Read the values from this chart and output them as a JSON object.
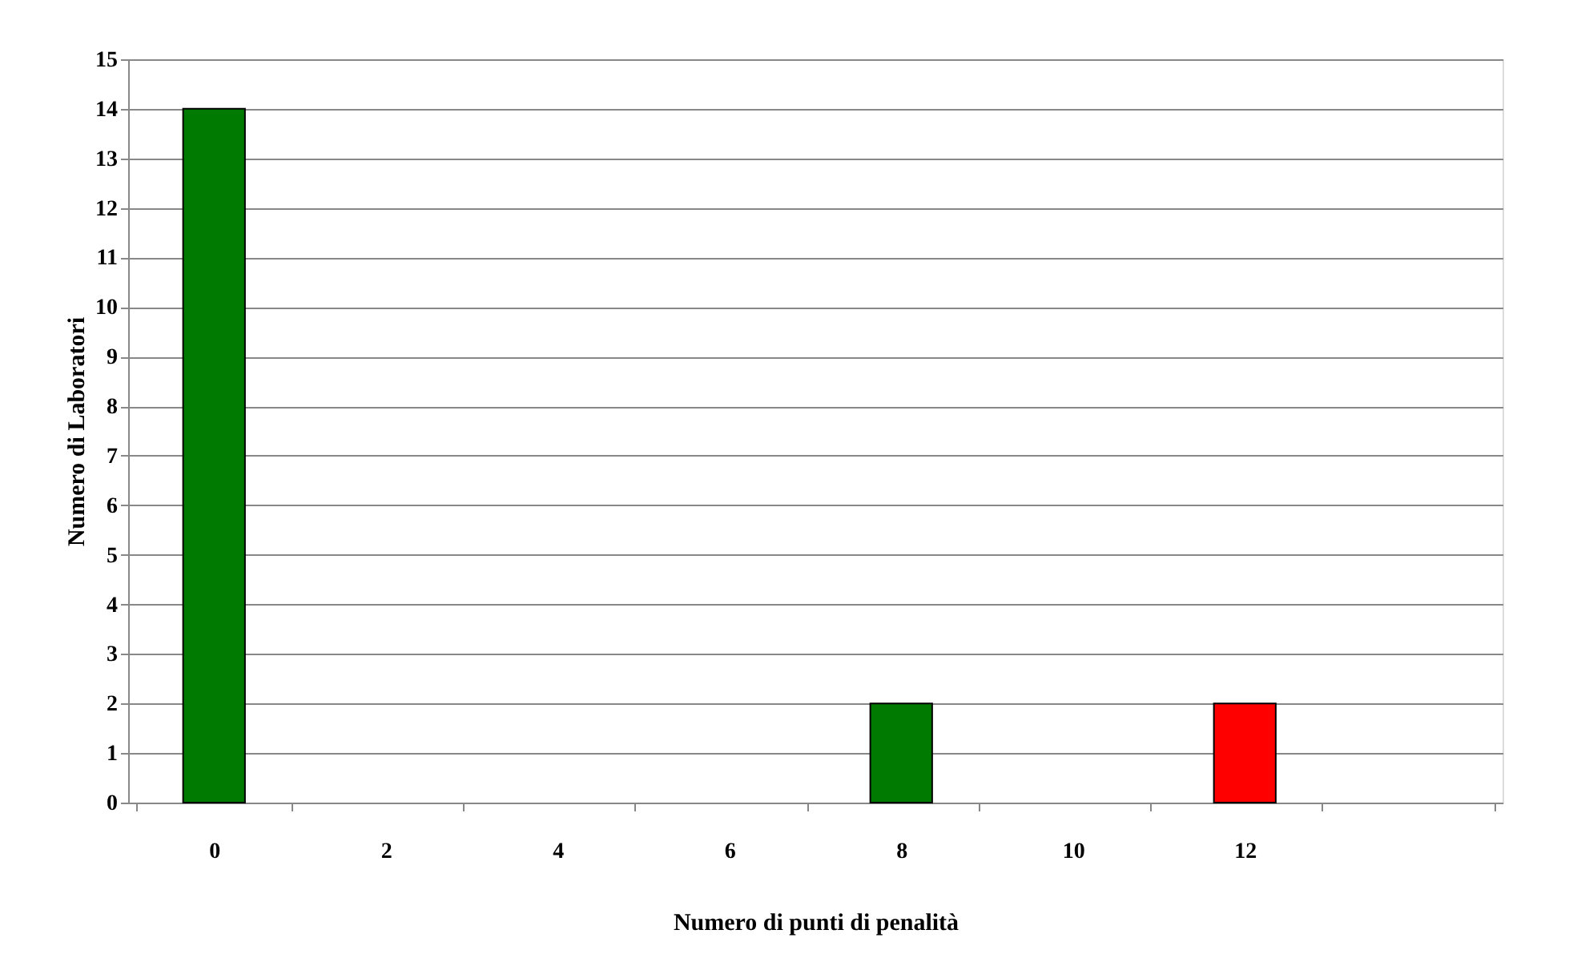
{
  "chart_data": {
    "type": "bar",
    "xlabel": "Numero di punti di penalità",
    "ylabel": "Numero di Laboratori",
    "categories": [
      "0",
      "2",
      "4",
      "6",
      "8",
      "10",
      "12",
      null
    ],
    "values": [
      14,
      null,
      null,
      null,
      2,
      null,
      2,
      null
    ],
    "colors": [
      "#007a00",
      null,
      null,
      null,
      "#007a00",
      null,
      "#ff0000",
      null
    ],
    "ylim": [
      0,
      15
    ],
    "yticks": [
      0,
      1,
      2,
      3,
      4,
      5,
      6,
      7,
      8,
      9,
      10,
      11,
      12,
      13,
      14,
      15
    ],
    "grid": "y",
    "legend": false
  }
}
